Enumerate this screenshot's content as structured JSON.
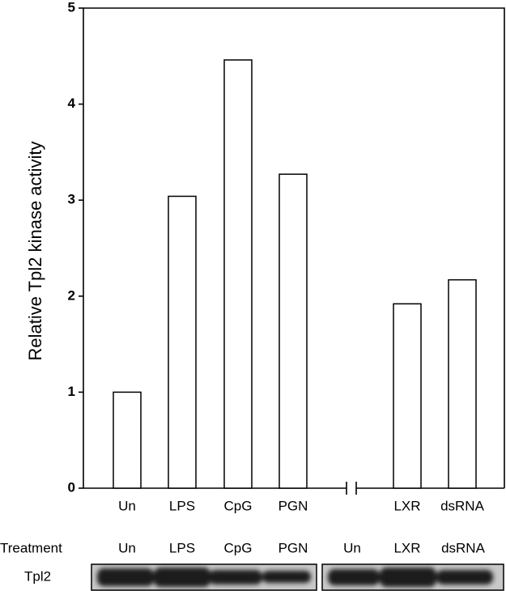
{
  "chart_data": {
    "type": "bar",
    "y_label": "Relative Tpl2 kinase activity",
    "categories": [
      "Un",
      "LPS",
      "CpG",
      "PGN",
      "LXR",
      "dsRNA"
    ],
    "values": [
      1.0,
      3.04,
      4.46,
      3.27,
      1.92,
      2.17
    ],
    "color": "#ffffff",
    "ylim": [
      0,
      5
    ],
    "yticks": [
      0,
      1,
      2,
      3,
      4,
      5
    ],
    "grid": false
  },
  "blot": {
    "row_labels": [
      "Treatment",
      "Tpl2"
    ],
    "lanes": [
      "Un",
      "LPS",
      "CpG",
      "PGN",
      "Un",
      "LXR",
      "dsRNA"
    ]
  }
}
